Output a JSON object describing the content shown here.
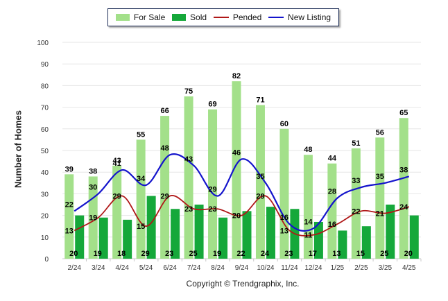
{
  "chart_data": {
    "type": "bar",
    "categories": [
      "2/24",
      "3/24",
      "4/24",
      "5/24",
      "6/24",
      "7/24",
      "8/24",
      "9/24",
      "10/24",
      "11/24",
      "12/24",
      "1/25",
      "2/25",
      "3/25",
      "4/25"
    ],
    "bar_series": [
      {
        "name": "For Sale",
        "color": "#a3e08a",
        "values": [
          39,
          38,
          43,
          55,
          66,
          75,
          69,
          82,
          71,
          60,
          48,
          44,
          51,
          56,
          65
        ]
      },
      {
        "name": "Sold",
        "color": "#15a83a",
        "values": [
          20,
          19,
          18,
          29,
          23,
          25,
          19,
          22,
          24,
          23,
          17,
          13,
          15,
          25,
          20
        ]
      }
    ],
    "line_series": [
      {
        "name": "Pended",
        "color": "#b01818",
        "values": [
          13,
          19,
          29,
          15,
          29,
          23,
          23,
          20,
          29,
          13,
          11,
          16,
          22,
          21,
          24
        ]
      },
      {
        "name": "New Listing",
        "color": "#1414cc",
        "values": [
          22,
          30,
          41,
          34,
          48,
          43,
          29,
          46,
          35,
          16,
          14,
          28,
          33,
          35,
          38
        ]
      }
    ],
    "ylabel": "Number of Homes",
    "ylim": [
      0,
      100
    ],
    "yticks": [
      0,
      10,
      20,
      30,
      40,
      50,
      60,
      70,
      80,
      90,
      100
    ],
    "legend_position": "top",
    "grid": true
  },
  "footer": {
    "copyright": "Copyright © Trendgraphix, Inc."
  }
}
